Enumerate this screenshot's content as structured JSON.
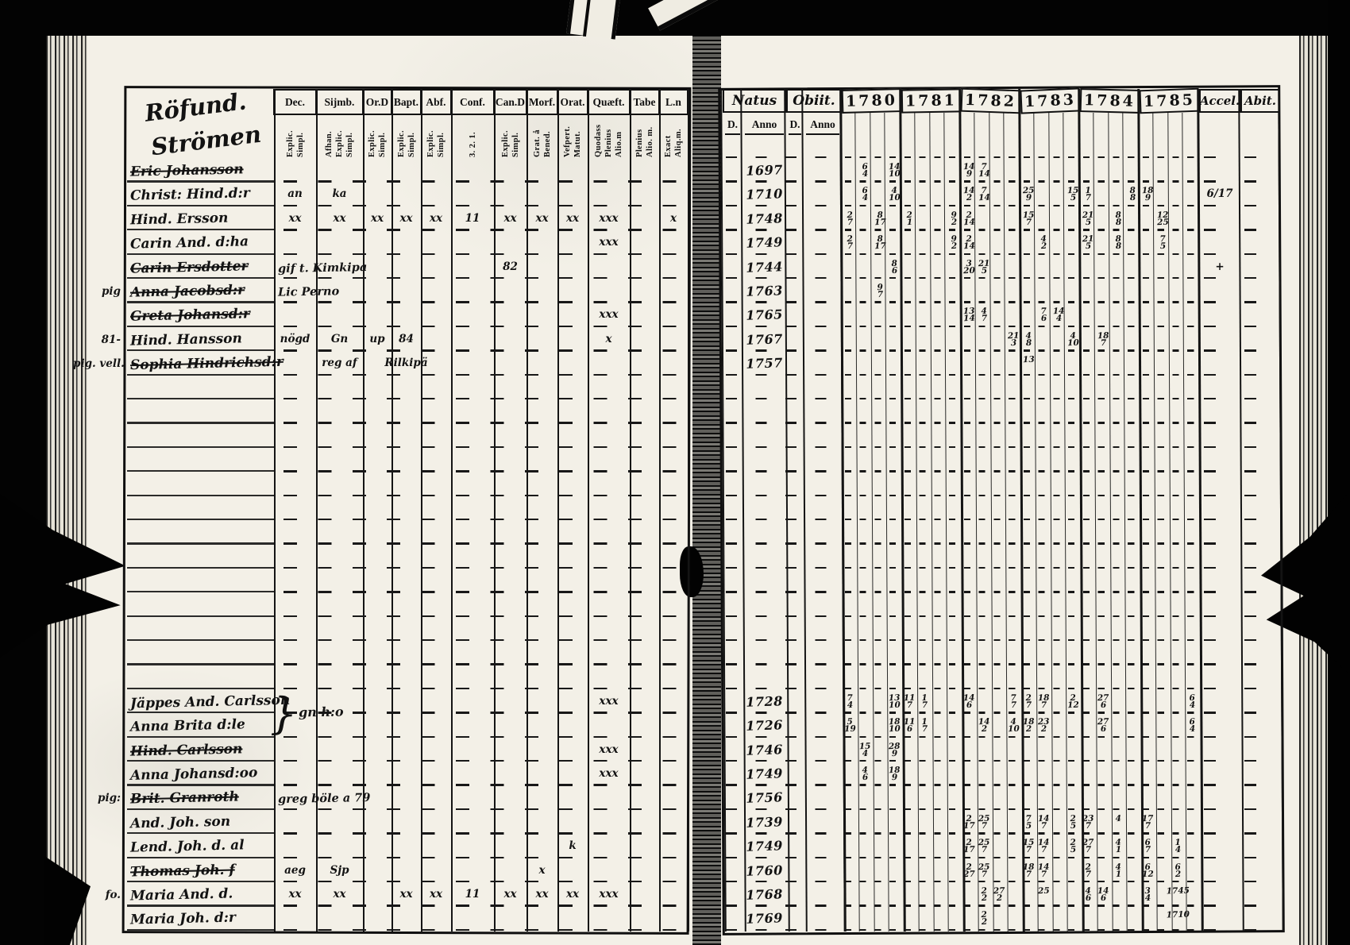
{
  "scan": {
    "ink": "#141414",
    "paper": "#f3f0e7",
    "left_page": {
      "title_lines": [
        "Röfund.",
        "Strömen"
      ],
      "columns": [
        {
          "label": "Dec.",
          "sub": [
            "Explic.",
            "Simpl."
          ]
        },
        {
          "label": "Sijmb.",
          "sub": [
            "Afhan.",
            "Explic.",
            "Simpl."
          ]
        },
        {
          "label": "Or.D",
          "sub": [
            "Explic.",
            "Simpl."
          ]
        },
        {
          "label": "Bapt.",
          "sub": [
            "Explic.",
            "Simpl."
          ]
        },
        {
          "label": "Abf.",
          "sub": [
            "Explic.",
            "Simpl."
          ]
        },
        {
          "label": "Conf.",
          "sub": [
            "3. 2. 1."
          ]
        },
        {
          "label": "Can.D",
          "sub": [
            "Explic.",
            "Simpl."
          ]
        },
        {
          "label": "Morf.",
          "sub": [
            "Grat. å",
            "Bened."
          ]
        },
        {
          "label": "Orat.",
          "sub": [
            "Vefpert.",
            "Matut."
          ]
        },
        {
          "label": "Quæft.",
          "sub": [
            "Quodass",
            "Plenius",
            "Alio.m"
          ]
        },
        {
          "label": "Tabe",
          "sub": [
            "Plenius",
            "Alio. m."
          ]
        },
        {
          "label": "L.n",
          "sub": [
            "Exact",
            "Aliq.m."
          ]
        }
      ],
      "brace_note": "gn h:o",
      "rows": [
        {
          "i": 0,
          "name": "Eric Johansson",
          "struck": true
        },
        {
          "i": 1,
          "name": "Christ: Hind.d:r",
          "cells": {
            "0": "an",
            "1": "ka"
          }
        },
        {
          "i": 2,
          "name": "Hind. Ersson",
          "cells": {
            "0": "xx",
            "1": "xx",
            "2": "xx",
            "3": "xx",
            "4": "xx",
            "5": "11",
            "6": "xx",
            "7": "xx",
            "8": "xx",
            "9": "xxx",
            "11": "x"
          }
        },
        {
          "i": 3,
          "name": "Carin And. d:ha",
          "cells": {
            "9": "xxx"
          }
        },
        {
          "i": 4,
          "name": "Carin Ersdotter",
          "struck": true,
          "note": "gif t. Kimkipa",
          "cells": {
            "6": "82"
          }
        },
        {
          "i": 5,
          "name": "Anna Jacobsd:r",
          "struck": true,
          "margin": "pig",
          "note": "Lic Perno"
        },
        {
          "i": 6,
          "name": "Greta Johansd:r",
          "struck": true,
          "cells": {
            "9": "xxx"
          }
        },
        {
          "i": 7,
          "name": "Hind. Hansson",
          "margin": "81-",
          "cells": {
            "0": "nögd",
            "1": "Gn",
            "2": "up",
            "3": "84",
            "9": "x"
          }
        },
        {
          "i": 8,
          "name": "Sophia Hindrichsd:r",
          "struck": true,
          "margin": "pig. vell.",
          "cells": {
            "1": "reg af",
            "3": "Rilkipä"
          }
        },
        {
          "i": 22,
          "name": "Jäppes And. Carlsson",
          "cells": {
            "9": "xxx"
          }
        },
        {
          "i": 23,
          "name": "Anna Brita d:le"
        },
        {
          "i": 24,
          "name": "Hind. Carlsson",
          "struck": true,
          "cells": {
            "9": "xxx"
          }
        },
        {
          "i": 25,
          "name": "Anna Johansd:oo",
          "cells": {
            "9": "xxx"
          }
        },
        {
          "i": 26,
          "name": "Brit. Granroth",
          "struck": true,
          "margin": "pig:",
          "note": "greg böle a 79"
        },
        {
          "i": 27,
          "name": "And. Joh. son"
        },
        {
          "i": 28,
          "name": "Lend. Joh. d. al",
          "cells": {
            "8": "k"
          }
        },
        {
          "i": 29,
          "name": "Thomas Joh. f",
          "struck": true,
          "cells": {
            "0": "aeg",
            "1": "Sjp",
            "7": "x"
          }
        },
        {
          "i": 30,
          "name": "Maria And. d.",
          "margin": "fo.",
          "cells": {
            "0": "xx",
            "1": "xx",
            "3": "xx",
            "4": "xx",
            "5": "11",
            "6": "xx",
            "7": "xx",
            "8": "xx",
            "9": "xxx"
          }
        },
        {
          "i": 31,
          "name": "Maria Joh. d:r"
        }
      ]
    },
    "right_page": {
      "natus_label": "Natus",
      "obiit_label": "Obiit.",
      "d_label": "D.",
      "anno_label": "Anno",
      "years": [
        "1780",
        "1781",
        "1782",
        "1783",
        "1784",
        "1785"
      ],
      "accel_label": "Accel.",
      "abit_label": "Abit.",
      "rows": [
        {
          "i": 0,
          "natus": "1697",
          "marks": [
            [
              0,
              1,
              "6/4"
            ],
            [
              0,
              3,
              "14/10"
            ],
            [
              2,
              0,
              "14/9"
            ],
            [
              2,
              1,
              "7/14"
            ]
          ]
        },
        {
          "i": 1,
          "natus": "1710",
          "marks": [
            [
              0,
              1,
              "6/4"
            ],
            [
              0,
              3,
              "4/10"
            ],
            [
              2,
              0,
              "14/2"
            ],
            [
              2,
              1,
              "7/14"
            ],
            [
              3,
              0,
              "25/9"
            ],
            [
              3,
              3,
              "15/5"
            ],
            [
              4,
              0,
              "1/7"
            ],
            [
              4,
              3,
              "8/8"
            ],
            [
              5,
              0,
              "18/9"
            ]
          ],
          "accel": "6/17"
        },
        {
          "i": 2,
          "natus": "1748",
          "marks": [
            [
              0,
              0,
              "2/7"
            ],
            [
              0,
              2,
              "8/17"
            ],
            [
              1,
              0,
              "2/1"
            ],
            [
              1,
              3,
              "9/2"
            ],
            [
              2,
              0,
              "2/14"
            ],
            [
              3,
              0,
              "15/7"
            ],
            [
              4,
              0,
              "21/5"
            ],
            [
              4,
              2,
              "8/8"
            ],
            [
              5,
              1,
              "12/25"
            ]
          ]
        },
        {
          "i": 3,
          "natus": "1749",
          "marks": [
            [
              0,
              0,
              "2/7"
            ],
            [
              0,
              2,
              "8/17"
            ],
            [
              1,
              3,
              "9/2"
            ],
            [
              2,
              0,
              "2/14"
            ],
            [
              3,
              1,
              "4/2"
            ],
            [
              4,
              0,
              "21/5"
            ],
            [
              4,
              2,
              "8/8"
            ],
            [
              5,
              1,
              "7/5"
            ]
          ]
        },
        {
          "i": 4,
          "natus": "1744",
          "marks": [
            [
              0,
              3,
              "8/6"
            ],
            [
              2,
              0,
              "3/20"
            ],
            [
              2,
              1,
              "21/5"
            ]
          ],
          "accel": "+"
        },
        {
          "i": 5,
          "natus": "1763",
          "marks": [
            [
              0,
              2,
              "9/7"
            ]
          ]
        },
        {
          "i": 6,
          "natus": "1765",
          "marks": [
            [
              2,
              0,
              "13/14"
            ],
            [
              2,
              1,
              "4/7"
            ],
            [
              3,
              1,
              "7/6"
            ],
            [
              3,
              2,
              "14/4"
            ]
          ]
        },
        {
          "i": 7,
          "natus": "1767",
          "marks": [
            [
              2,
              3,
              "21/3"
            ],
            [
              3,
              0,
              "4/8"
            ],
            [
              3,
              3,
              "4/10"
            ],
            [
              4,
              1,
              "18/7"
            ]
          ]
        },
        {
          "i": 8,
          "natus": "1757",
          "marks": [
            [
              3,
              0,
              "13"
            ]
          ]
        },
        {
          "i": 22,
          "natus": "1728",
          "marks": [
            [
              0,
              0,
              "7/4"
            ],
            [
              0,
              3,
              "13/10"
            ],
            [
              1,
              0,
              "11/7"
            ],
            [
              1,
              1,
              "1/7"
            ],
            [
              2,
              0,
              "14/6"
            ],
            [
              2,
              3,
              "7/7"
            ],
            [
              3,
              0,
              "2/7"
            ],
            [
              3,
              1,
              "18/7"
            ],
            [
              3,
              3,
              "2/12"
            ],
            [
              4,
              1,
              "27/6"
            ],
            [
              5,
              3,
              "6/4"
            ]
          ]
        },
        {
          "i": 23,
          "natus": "1726",
          "marks": [
            [
              0,
              0,
              "5/19"
            ],
            [
              0,
              3,
              "18/10"
            ],
            [
              1,
              0,
              "11/6"
            ],
            [
              1,
              1,
              "1/7"
            ],
            [
              2,
              1,
              "14/2"
            ],
            [
              2,
              3,
              "4/10"
            ],
            [
              3,
              0,
              "18/2"
            ],
            [
              3,
              1,
              "23/2"
            ],
            [
              4,
              1,
              "27/6"
            ],
            [
              5,
              3,
              "6/4"
            ]
          ]
        },
        {
          "i": 24,
          "natus": "1746",
          "marks": [
            [
              0,
              1,
              "15/4"
            ],
            [
              0,
              3,
              "28/9"
            ]
          ]
        },
        {
          "i": 25,
          "natus": "1749",
          "marks": [
            [
              0,
              1,
              "4/6"
            ],
            [
              0,
              3,
              "18/9"
            ]
          ]
        },
        {
          "i": 26,
          "natus": "1756",
          "marks": []
        },
        {
          "i": 27,
          "natus": "1739",
          "marks": [
            [
              2,
              0,
              "2/17"
            ],
            [
              2,
              1,
              "25/7"
            ],
            [
              3,
              0,
              "7/5"
            ],
            [
              3,
              1,
              "14/7"
            ],
            [
              3,
              3,
              "2/5"
            ],
            [
              4,
              0,
              "23/7"
            ],
            [
              4,
              2,
              "4"
            ],
            [
              5,
              0,
              "17/7"
            ]
          ]
        },
        {
          "i": 28,
          "natus": "1749",
          "marks": [
            [
              2,
              0,
              "2/17"
            ],
            [
              2,
              1,
              "25/7"
            ],
            [
              3,
              0,
              "15/7"
            ],
            [
              3,
              1,
              "14/7"
            ],
            [
              3,
              3,
              "2/5"
            ],
            [
              4,
              0,
              "27/7"
            ],
            [
              4,
              2,
              "4/1"
            ],
            [
              5,
              0,
              "6/7"
            ],
            [
              5,
              2,
              "1/4"
            ]
          ]
        },
        {
          "i": 29,
          "natus": "1760",
          "marks": [
            [
              2,
              0,
              "2/27"
            ],
            [
              2,
              1,
              "25/7"
            ],
            [
              3,
              0,
              "18/7"
            ],
            [
              3,
              1,
              "14/7"
            ],
            [
              4,
              0,
              "2/7"
            ],
            [
              4,
              2,
              "4/1"
            ],
            [
              5,
              0,
              "6/12"
            ],
            [
              5,
              2,
              "6/2"
            ]
          ]
        },
        {
          "i": 30,
          "natus": "1768",
          "marks": [
            [
              2,
              1,
              "2/2"
            ],
            [
              2,
              2,
              "27/2"
            ],
            [
              3,
              1,
              "25"
            ],
            [
              4,
              0,
              "4/6"
            ],
            [
              4,
              1,
              "14/6"
            ],
            [
              5,
              0,
              "3/4"
            ],
            [
              5,
              2,
              "1745"
            ]
          ]
        },
        {
          "i": 31,
          "natus": "1769",
          "marks": [
            [
              2,
              1,
              "2/2"
            ],
            [
              5,
              2,
              "1710"
            ]
          ]
        }
      ]
    }
  }
}
